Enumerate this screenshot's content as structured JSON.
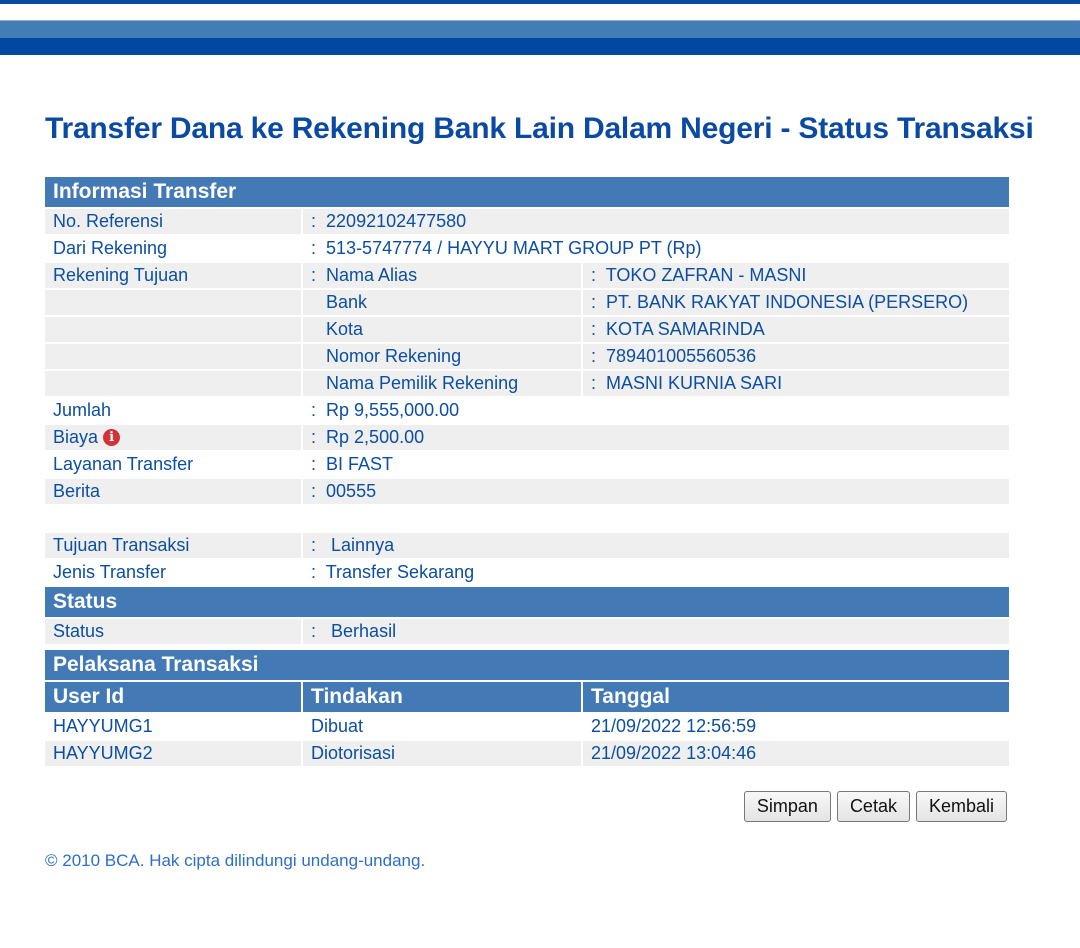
{
  "title": "Transfer Dana ke Rekening Bank Lain Dalam Negeri - Status Transaksi",
  "info": {
    "header": "Informasi Transfer",
    "no_ref": {
      "label": "No. Referensi",
      "value": "22092102477580"
    },
    "dari": {
      "label": "Dari Rekening",
      "value": "513-5747774 / HAYYU MART GROUP PT  (Rp)"
    },
    "tujuan": {
      "label": "Rekening Tujuan",
      "rows": [
        {
          "label": "Nama Alias",
          "value": "TOKO ZAFRAN - MASNI"
        },
        {
          "label": "Bank",
          "value": "PT. BANK RAKYAT INDONESIA (PERSERO)"
        },
        {
          "label": "Kota",
          "value": "KOTA SAMARINDA"
        },
        {
          "label": "Nomor Rekening",
          "value": "789401005560536"
        },
        {
          "label": "Nama Pemilik Rekening",
          "value": "MASNI KURNIA SARI"
        }
      ]
    },
    "jumlah": {
      "label": "Jumlah",
      "value": "Rp 9,555,000.00"
    },
    "biaya": {
      "label": "Biaya",
      "value": "Rp 2,500.00",
      "icon": "info-icon"
    },
    "layanan": {
      "label": "Layanan Transfer",
      "value": "BI FAST"
    },
    "berita": {
      "label": "Berita",
      "value": "00555"
    },
    "tujuan_trx": {
      "label": "Tujuan Transaksi",
      "value": "Lainnya"
    },
    "jenis": {
      "label": "Jenis Transfer",
      "value": "Transfer Sekarang"
    }
  },
  "status": {
    "header": "Status",
    "label": "Status",
    "value": "Berhasil"
  },
  "pelaksana": {
    "header": "Pelaksana Transaksi",
    "columns": [
      "User Id",
      "Tindakan",
      "Tanggal"
    ],
    "rows": [
      [
        "HAYYUMG1",
        "Dibuat",
        "21/09/2022 12:56:59"
      ],
      [
        "HAYYUMG2",
        "Diotorisasi",
        "21/09/2022 13:04:46"
      ]
    ]
  },
  "buttons": {
    "simpan": "Simpan",
    "cetak": "Cetak",
    "kembali": "Kembali"
  },
  "colon": ":",
  "footer": "©  2010 BCA. Hak cipta dilindungi undang-undang."
}
